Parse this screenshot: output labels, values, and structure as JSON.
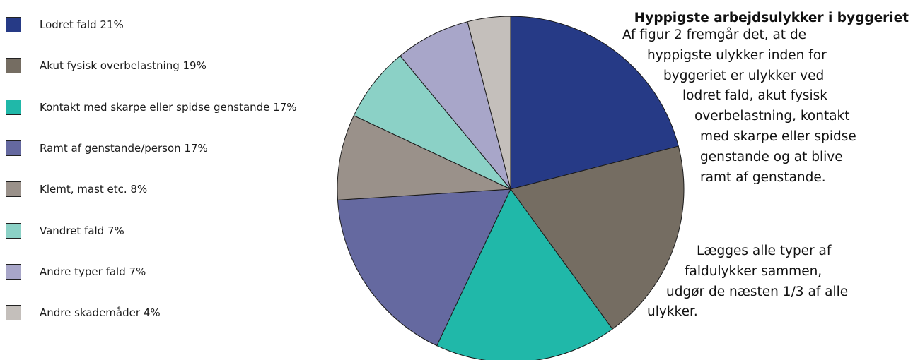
{
  "chart_data": {
    "type": "pie",
    "slices": [
      {
        "label": "Lodret fald 21%",
        "value": 21,
        "color": "#263a86"
      },
      {
        "label": "Akut fysisk overbelastning 19%",
        "value": 19,
        "color": "#756d62"
      },
      {
        "label": "Kontakt med skarpe eller spidse genstande 17%",
        "value": 17,
        "color": "#20b8a9"
      },
      {
        "label": "Ramt af genstande/person 17%",
        "value": 17,
        "color": "#6569a0"
      },
      {
        "label": "Klemt, mast etc. 8%",
        "value": 8,
        "color": "#9a918a"
      },
      {
        "label": "Vandret fald 7%",
        "value": 7,
        "color": "#8bd1c6"
      },
      {
        "label": "Andre typer fald 7%",
        "value": 7,
        "color": "#a8a6c9"
      },
      {
        "label": "Andre skademåder 4%",
        "value": 4,
        "color": "#c4bfbb"
      }
    ],
    "legend_position": "left"
  },
  "text": {
    "title": "Hyppigste arbejdsulykker i byggeriet",
    "paragraph1": [
      "Af figur 2 fremgår det, at de",
      "hyppigste ulykker inden for",
      "byggeriet er ulykker ved",
      "lodret fald, akut fysisk",
      "overbelastning, kontakt",
      "med skarpe eller spidse",
      "genstande og at blive",
      "ramt af genstande."
    ],
    "paragraph2": [
      "Lægges alle typer af",
      "faldulykker sammen,",
      "udgør de næsten 1/3 af alle",
      "ulykker."
    ]
  }
}
